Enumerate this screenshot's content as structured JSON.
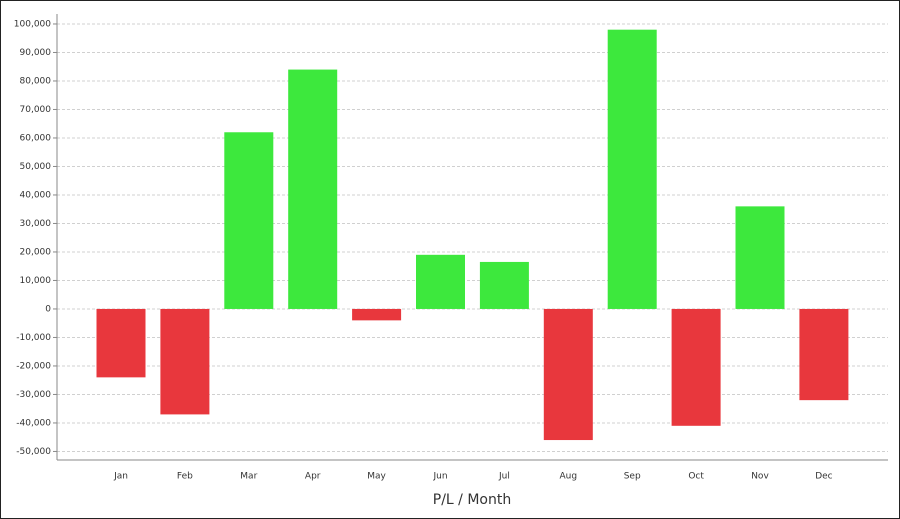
{
  "chart_data": {
    "type": "bar",
    "x_label": "P/L / Month",
    "categories": [
      "Jan",
      "Feb",
      "Mar",
      "Apr",
      "May",
      "Jun",
      "Jul",
      "Aug",
      "Sep",
      "Oct",
      "Nov",
      "Dec"
    ],
    "values": [
      -24000,
      -37000,
      62000,
      84000,
      -4000,
      19000,
      16500,
      -46000,
      98000,
      -41000,
      36000,
      -32000
    ],
    "positive_color": "#3de83d",
    "negative_color": "#e8373d",
    "ylim": [
      -53000,
      103500
    ],
    "yticks": [
      {
        "value": -50000,
        "label": "-50,000"
      },
      {
        "value": -40000,
        "label": "-40,000"
      },
      {
        "value": -30000,
        "label": "-30,000"
      },
      {
        "value": -20000,
        "label": "-20,000"
      },
      {
        "value": -10000,
        "label": "-10,000"
      },
      0,
      {
        "value": 10000,
        "label": "10,000"
      },
      {
        "value": 20000,
        "label": "20,000"
      },
      {
        "value": 30000,
        "label": "30,000"
      },
      {
        "value": 40000,
        "label": "40,000"
      },
      {
        "value": 50000,
        "label": "50,000"
      },
      {
        "value": 60000,
        "label": "60,000"
      },
      {
        "value": 70000,
        "label": "70,000"
      },
      {
        "value": 80000,
        "label": "80,000"
      },
      {
        "value": 90000,
        "label": "90,000"
      },
      {
        "value": 100000,
        "label": "100,000"
      }
    ],
    "grid": true
  }
}
